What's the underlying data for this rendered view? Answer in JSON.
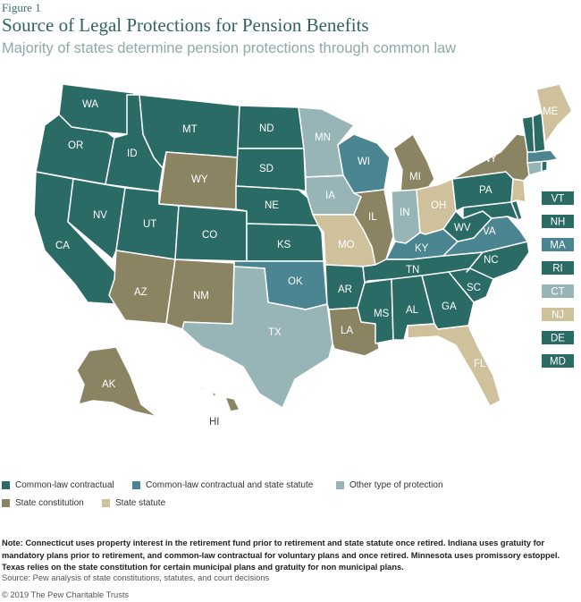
{
  "header": {
    "figure_label": "Figure 1",
    "title": "Source of Legal Protections for Pension Benefits",
    "subtitle": "Majority of states determine pension protections through common law"
  },
  "colors": {
    "common_law_contractual": "#2a6b66",
    "common_law_and_statute": "#4a8591",
    "other": "#97b5b7",
    "state_constitution": "#8b8463",
    "state_statute": "#cfc19c"
  },
  "legend": [
    {
      "label": "Common-law contractual",
      "color": "#2a6b66"
    },
    {
      "label": "Common-law contractual and state statute",
      "color": "#4a8591"
    },
    {
      "label": "Other type of protection",
      "color": "#97b5b7"
    },
    {
      "label": "State constitution",
      "color": "#8b8463"
    },
    {
      "label": "State statute",
      "color": "#cfc19c"
    }
  ],
  "states": {
    "WA": "WA",
    "OR": "OR",
    "CA": "CA",
    "ID": "ID",
    "NV": "NV",
    "MT": "MT",
    "WY": "WY",
    "UT": "UT",
    "AZ": "AZ",
    "CO": "CO",
    "NM": "NM",
    "ND": "ND",
    "SD": "SD",
    "NE": "NE",
    "KS": "KS",
    "OK": "OK",
    "TX": "TX",
    "MN": "MN",
    "IA": "IA",
    "MO": "MO",
    "AR": "AR",
    "LA": "LA",
    "WI": "WI",
    "IL": "IL",
    "MI": "MI",
    "IN": "IN",
    "OH": "OH",
    "KY": "KY",
    "TN": "TN",
    "MS": "MS",
    "AL": "AL",
    "GA": "GA",
    "FL": "FL",
    "SC": "SC",
    "NC": "NC",
    "VA": "VA",
    "WV": "WV",
    "PA": "PA",
    "NY": "NY",
    "ME": "ME",
    "AK": "AK",
    "HI": "HI"
  },
  "small_states": [
    {
      "label": "VT",
      "color": "#2a6b66"
    },
    {
      "label": "NH",
      "color": "#2a6b66"
    },
    {
      "label": "MA",
      "color": "#4a8591"
    },
    {
      "label": "RI",
      "color": "#2a6b66"
    },
    {
      "label": "CT",
      "color": "#97b5b7"
    },
    {
      "label": "NJ",
      "color": "#cfc19c"
    },
    {
      "label": "DE",
      "color": "#2a6b66"
    },
    {
      "label": "MD",
      "color": "#2a6b66"
    }
  ],
  "note": "Note: Connecticut uses property interest in the retirement fund prior to retirement and state statute once retired. Indiana uses gratuity for mandatory plans prior to retirement, and common-law contractual for voluntary plans and once retired. Minnesota uses promissory estoppel. Texas relies on the state constitution for certain municipal plans and gratuity for non municipal plans.",
  "source": "Source: Pew analysis of state constitutions, statutes, and court decisions",
  "copyright": "© 2019 The Pew Charitable Trusts"
}
